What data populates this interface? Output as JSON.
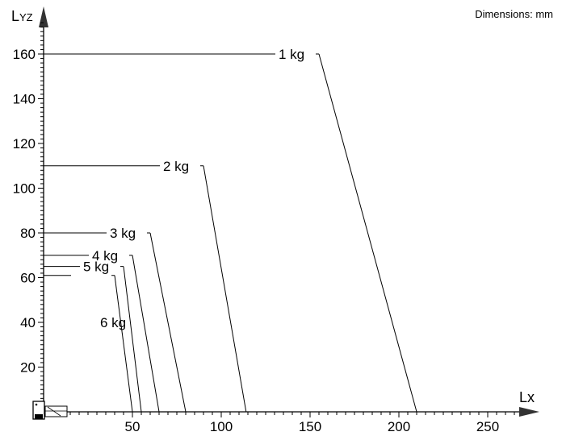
{
  "chart_data": {
    "type": "line",
    "note": "Dimensions: mm",
    "xlabel": "Lx",
    "ylabel_main": "L",
    "ylabel_sub": "YZ",
    "xlim": [
      0,
      265
    ],
    "ylim": [
      0,
      175
    ],
    "xticks": [
      50,
      100,
      150,
      200,
      250
    ],
    "yticks": [
      20,
      40,
      60,
      80,
      100,
      120,
      140,
      160
    ],
    "grid": false,
    "series": [
      {
        "name": "1 kg",
        "points": [
          [
            0,
            160
          ],
          [
            155,
            160
          ],
          [
            210,
            0
          ]
        ]
      },
      {
        "name": "2 kg",
        "points": [
          [
            0,
            110
          ],
          [
            90,
            110
          ],
          [
            114,
            0
          ]
        ]
      },
      {
        "name": "3 kg",
        "points": [
          [
            0,
            80
          ],
          [
            60,
            80
          ],
          [
            80,
            0
          ]
        ]
      },
      {
        "name": "4 kg",
        "points": [
          [
            0,
            70
          ],
          [
            50,
            70
          ],
          [
            65,
            0
          ]
        ]
      },
      {
        "name": "5 kg",
        "points": [
          [
            0,
            65
          ],
          [
            45,
            65
          ],
          [
            55,
            0
          ]
        ]
      },
      {
        "name": "6 kg",
        "points": [
          [
            0,
            61
          ],
          [
            40,
            61
          ],
          [
            50,
            0
          ]
        ]
      }
    ]
  }
}
